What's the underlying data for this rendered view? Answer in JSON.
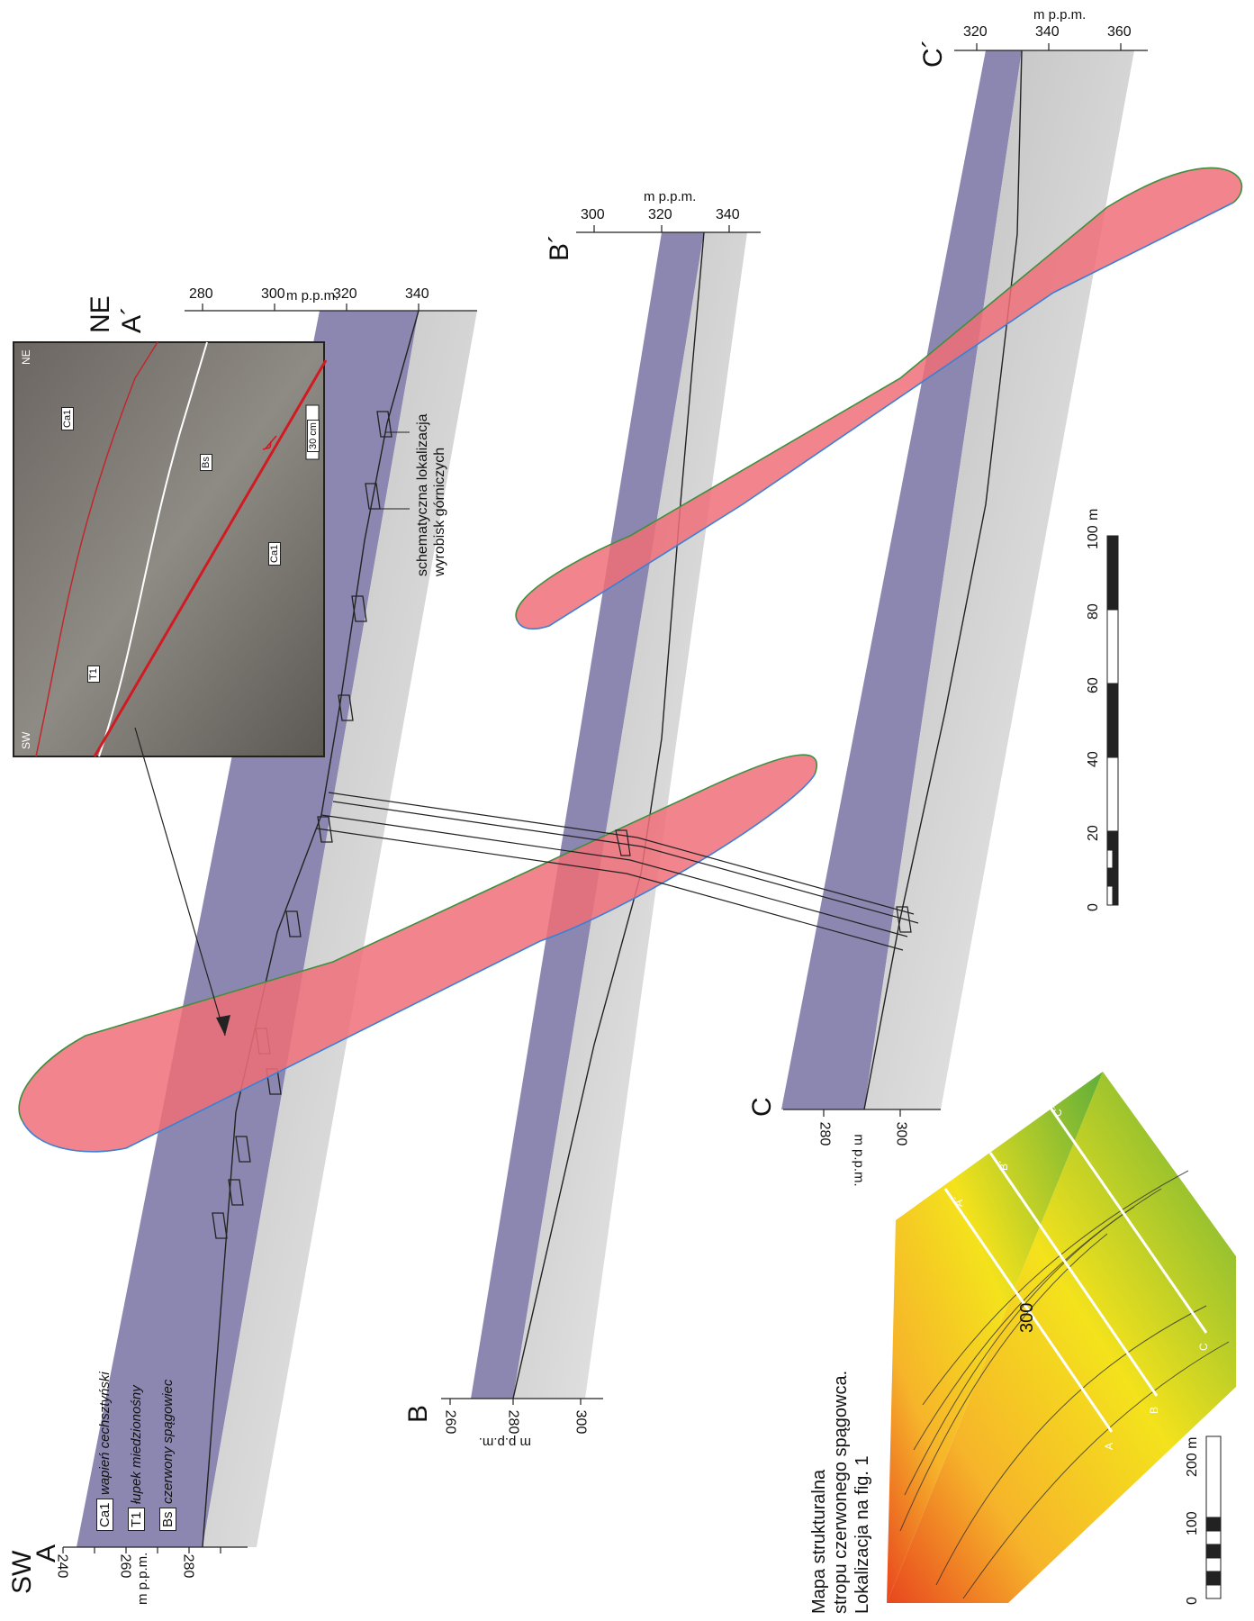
{
  "sections": {
    "A": {
      "start": "A",
      "end": "A´",
      "start_dir": "SW",
      "end_dir": "NE",
      "axis_start": {
        "title": "m p.p.m.",
        "ticks": [
          "240",
          "260",
          "280"
        ]
      },
      "axis_end": {
        "title": "m p.p.m.",
        "ticks": [
          "280",
          "300",
          "320",
          "340"
        ]
      }
    },
    "B": {
      "start": "B",
      "end": "B´",
      "axis_start": {
        "title": "m p.p.m.",
        "ticks": [
          "260",
          "280",
          "300"
        ]
      },
      "axis_end": {
        "title": "m p.p.m.",
        "ticks": [
          "300",
          "320",
          "340"
        ]
      }
    },
    "C": {
      "start": "C",
      "end": "C´",
      "axis_start": {
        "title": "m p.p.m.",
        "ticks": [
          "280",
          "300"
        ]
      },
      "axis_end": {
        "title": "m p.p.m.",
        "ticks": [
          "320",
          "340",
          "360"
        ]
      }
    }
  },
  "legend": [
    {
      "code": "Ca1",
      "text": "wapień cechsztyński"
    },
    {
      "code": "T1",
      "text": "łupek miedzionośny"
    },
    {
      "code": "Bs",
      "text": "czerwony spągowiec"
    }
  ],
  "annotation": {
    "line1": "schematyczna lokalizacja",
    "line2": "wyrobisk górniczych"
  },
  "photo": {
    "left_dir": "SW",
    "right_dir": "NE",
    "scale": "30 cm",
    "labels": [
      "Ca1",
      "Bs",
      "Ca1",
      "T1"
    ]
  },
  "scale_bar": {
    "ticks": [
      "0",
      "20",
      "40",
      "60",
      "80",
      "100"
    ],
    "unit": "m"
  },
  "map": {
    "title_lines": [
      "Mapa strukturalna",
      "stropu czerwonego spągowca.",
      "Lokalizacja na fig. 1"
    ],
    "contour_label": "300",
    "line_labels_start": [
      "A",
      "B",
      "C"
    ],
    "line_labels_end": [
      "A´",
      "B´",
      "C´"
    ],
    "scale_ticks": [
      "0",
      "100",
      "200 m"
    ]
  },
  "colors": {
    "limestone": "#8c87b0",
    "sandstone": "#cfcfcf",
    "fault": "#ef6f78",
    "fault_edge_top": "#3f8f3f",
    "fault_edge_bottom": "#3b7fd6"
  }
}
